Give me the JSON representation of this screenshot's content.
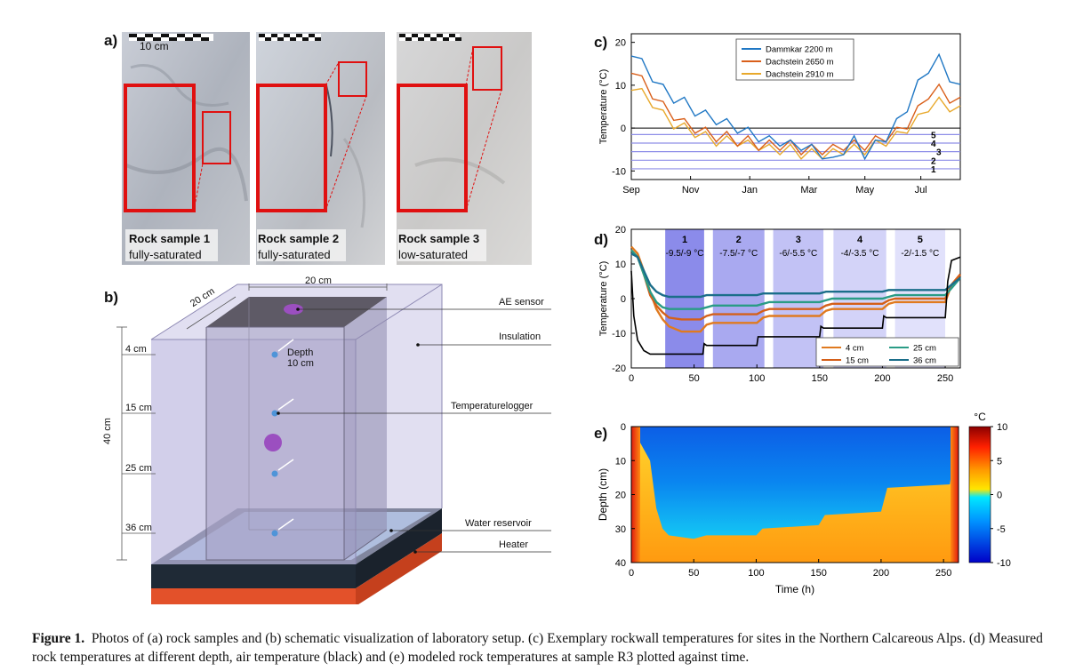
{
  "panel_a": {
    "letter": "a)",
    "scale_label": "10 cm",
    "samples": [
      {
        "name": "Rock sample 1",
        "state": "fully-saturated"
      },
      {
        "name": "Rock sample 2",
        "state": "fully-saturated"
      },
      {
        "name": "Rock sample 3",
        "state": "low-saturated"
      }
    ]
  },
  "panel_b": {
    "letter": "b)",
    "top_width_label": "20 cm",
    "depth_dim_label": "20 cm",
    "height_label": "40 cm",
    "depths": [
      "4 cm",
      "15 cm",
      "25 cm",
      "36 cm"
    ],
    "depth_annotation_1": "Depth",
    "depth_annotation_2": "10 cm",
    "callouts": {
      "ae_sensor": "AE sensor",
      "insulation": "Insulation",
      "temperaturelogger": "Temperaturelogger",
      "water_reservoir": "Water reservoir",
      "heater": "Heater"
    }
  },
  "chart_data": [
    {
      "panel": "c)",
      "type": "line",
      "ylabel": "Temperature (°C)",
      "ylim": [
        -12,
        22
      ],
      "yticks": [
        -10,
        0,
        10,
        20
      ],
      "xtick_labels": [
        "Sep",
        "Nov",
        "Jan",
        "Mar",
        "May",
        "Jul"
      ],
      "threshold_lines": [
        {
          "label": "1",
          "value": -9.5
        },
        {
          "label": "2",
          "value": -7.5
        },
        {
          "label": "3",
          "value": -5.5
        },
        {
          "label": "4",
          "value": -3.5
        },
        {
          "label": "5",
          "value": -1.5
        }
      ],
      "series": [
        {
          "name": "Dammkar 2200 m",
          "color": "#1f77c4",
          "values": [
            18,
            15,
            12,
            9,
            7,
            6,
            4,
            3,
            2,
            1,
            0,
            -1,
            -2,
            -3,
            -3,
            -4,
            -4,
            -5,
            -6,
            -8,
            -5,
            -3,
            -6,
            -4,
            -2,
            1,
            5,
            10,
            14,
            16,
            12,
            9
          ]
        },
        {
          "name": "Dachstein 2650 m",
          "color": "#d95f1a",
          "values": [
            14,
            11,
            8,
            5,
            3,
            1,
            0,
            -1,
            -2,
            -2,
            -3,
            -3,
            -4,
            -4,
            -4,
            -4,
            -5,
            -5,
            -5,
            -5,
            -4,
            -4,
            -4,
            -3,
            -2,
            -1,
            1,
            4,
            8,
            9,
            7,
            6
          ]
        },
        {
          "name": "Dachstein 2910 m",
          "color": "#e8a92c",
          "values": [
            10,
            8,
            6,
            3,
            1,
            0,
            -1,
            -2,
            -3,
            -3,
            -3,
            -4,
            -4,
            -5,
            -5,
            -5,
            -6,
            -6,
            -6,
            -6,
            -5,
            -5,
            -5,
            -4,
            -3,
            -2,
            0,
            2,
            5,
            6,
            5,
            4
          ]
        }
      ]
    },
    {
      "panel": "d)",
      "type": "line",
      "ylabel": "Temperature (°C)",
      "xlim": [
        0,
        262
      ],
      "ylim": [
        -20,
        20
      ],
      "yticks": [
        -20,
        -10,
        0,
        10,
        20
      ],
      "xticks": [
        0,
        50,
        100,
        150,
        200,
        250
      ],
      "phases": [
        {
          "label": "1",
          "range": "-9.5/-9 °C",
          "x0": 27,
          "x1": 58,
          "color": "#8b8bea"
        },
        {
          "label": "2",
          "range": "-7.5/-7 °C",
          "x0": 65,
          "x1": 106,
          "color": "#a9a9f0"
        },
        {
          "label": "3",
          "range": "-6/-5.5 °C",
          "x0": 113,
          "x1": 153,
          "color": "#c2c2f5"
        },
        {
          "label": "4",
          "range": "-4/-3.5 °C",
          "x0": 161,
          "x1": 203,
          "color": "#d3d3f8"
        },
        {
          "label": "5",
          "range": "-2/-1.5 °C",
          "x0": 210,
          "x1": 250,
          "color": "#e1e1fb"
        }
      ],
      "series": [
        {
          "name": "4 cm",
          "color": "#e07a1f",
          "x": [
            0,
            5,
            10,
            15,
            20,
            25,
            30,
            40,
            55,
            60,
            65,
            100,
            105,
            110,
            150,
            155,
            160,
            200,
            205,
            210,
            250,
            255,
            262
          ],
          "y": [
            15,
            13,
            8,
            2,
            -3,
            -6,
            -8,
            -9.5,
            -9.5,
            -7.5,
            -7,
            -7,
            -5.5,
            -5,
            -5,
            -3.5,
            -3,
            -3,
            -1.5,
            -1,
            -1,
            4,
            7
          ]
        },
        {
          "name": "15 cm",
          "color": "#d4601a",
          "x": [
            0,
            5,
            10,
            15,
            20,
            25,
            30,
            40,
            55,
            60,
            65,
            100,
            105,
            110,
            150,
            155,
            160,
            200,
            205,
            210,
            250,
            255,
            262
          ],
          "y": [
            14,
            12,
            7,
            1,
            -2,
            -4,
            -5.5,
            -6,
            -6,
            -5,
            -4.5,
            -4.5,
            -3.5,
            -3,
            -3,
            -2,
            -1.5,
            -1.5,
            -0.5,
            0,
            0,
            4,
            7
          ]
        },
        {
          "name": "25 cm",
          "color": "#2a9c86",
          "x": [
            0,
            5,
            10,
            15,
            20,
            25,
            30,
            40,
            55,
            60,
            65,
            100,
            105,
            110,
            150,
            155,
            160,
            200,
            205,
            210,
            250,
            255,
            262
          ],
          "y": [
            14,
            12,
            7,
            2,
            -1,
            -2.5,
            -3,
            -3,
            -3,
            -2.5,
            -2,
            -2,
            -1.5,
            -1,
            -1,
            -0.5,
            0,
            0,
            0.5,
            1,
            1,
            3,
            6
          ]
        },
        {
          "name": "36 cm",
          "color": "#1b6e8a",
          "x": [
            0,
            5,
            10,
            15,
            20,
            25,
            30,
            40,
            55,
            60,
            65,
            100,
            105,
            110,
            150,
            155,
            160,
            200,
            205,
            210,
            250,
            255,
            262
          ],
          "y": [
            13,
            12,
            8,
            4,
            2,
            1,
            0.5,
            0.5,
            0.5,
            1,
            1,
            1,
            1.5,
            1.5,
            1.5,
            2,
            2,
            2,
            2.5,
            2.5,
            2.5,
            4,
            6
          ]
        },
        {
          "name": "air",
          "color": "#000000",
          "x": [
            0,
            2,
            5,
            10,
            15,
            20,
            25,
            57,
            58,
            60,
            100,
            101,
            103,
            150,
            151,
            153,
            200,
            201,
            203,
            250,
            252,
            255,
            262
          ],
          "y": [
            8,
            -5,
            -12,
            -15,
            -16,
            -16,
            -16,
            -16,
            -13,
            -13.5,
            -13.5,
            -11,
            -11,
            -11,
            -8,
            -8.5,
            -8.5,
            -5,
            -5.5,
            -5.5,
            5,
            11,
            12
          ]
        }
      ],
      "legend_entries": [
        "4 cm",
        "15 cm",
        "25 cm",
        "36 cm"
      ]
    },
    {
      "panel": "e)",
      "type": "heatmap",
      "xlabel": "Time (h)",
      "ylabel": "Depth (cm)",
      "xlim": [
        0,
        262
      ],
      "ylim": [
        40,
        0
      ],
      "xticks": [
        0,
        50,
        100,
        150,
        200,
        250
      ],
      "yticks": [
        0,
        10,
        20,
        30,
        40
      ],
      "colorbar_unit": "°C",
      "colorbar_ticks": [
        10,
        5,
        0,
        -5,
        -10
      ],
      "freezing_front": {
        "time": [
          0,
          15,
          20,
          25,
          30,
          50,
          60,
          100,
          105,
          150,
          155,
          200,
          205,
          255,
          262
        ],
        "depth": [
          0,
          10,
          24,
          30,
          32,
          33,
          32,
          32,
          30,
          29,
          26,
          25,
          18,
          17,
          0
        ]
      }
    }
  ],
  "caption": {
    "label": "Figure 1.",
    "text": "Photos of (a) rock samples and (b) schematic visualization of laboratory setup. (c) Exemplary rockwall temperatures for sites in the Northern Calcareous Alps. (d) Measured rock temperatures at different depth, air temperature (black) and (e) modeled rock temperatures at sample R3 plotted against time."
  }
}
